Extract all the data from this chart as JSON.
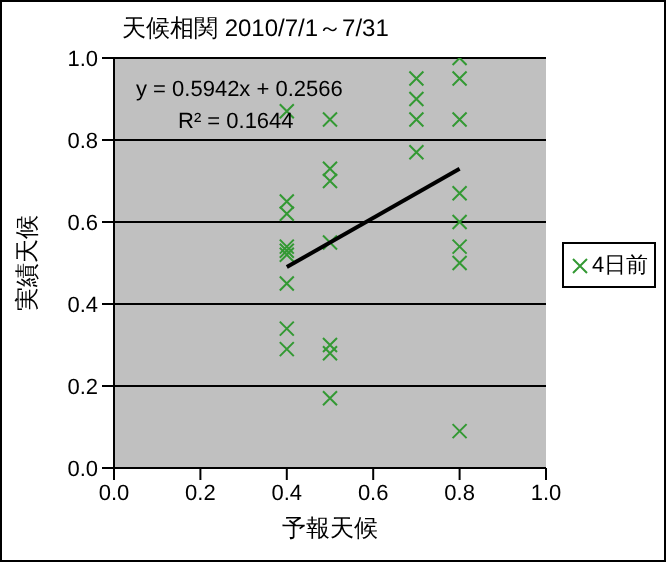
{
  "chart_data": {
    "type": "scatter",
    "title": "天候相関 2010/7/1～7/31",
    "xlabel": "予報天候",
    "ylabel": "実績天候",
    "xlim": [
      0,
      1
    ],
    "xticks": [
      {
        "value": 0,
        "label": "0.0"
      },
      {
        "value": 0.2,
        "label": "0.2"
      },
      {
        "value": 0.4,
        "label": "0.4"
      },
      {
        "value": 0.6,
        "label": "0.6"
      },
      {
        "value": 0.8,
        "label": "0.8"
      },
      {
        "value": 1,
        "label": "1.0"
      }
    ],
    "ylim": [
      0,
      1
    ],
    "yticks": [
      {
        "value": 0,
        "label": "0.0"
      },
      {
        "value": 0.2,
        "label": "0.2"
      },
      {
        "value": 0.4,
        "label": "0.4"
      },
      {
        "value": 0.6,
        "label": "0.6"
      },
      {
        "value": 0.8,
        "label": "0.8"
      },
      {
        "value": 1,
        "label": "1.0"
      }
    ],
    "grid": "y",
    "legend": "right",
    "marker": "cross",
    "series": [
      {
        "name": "4日前",
        "color": "#339933",
        "x": [
          0.4,
          0.4,
          0.4,
          0.4,
          0.4,
          0.4,
          0.4,
          0.4,
          0.4,
          0.5,
          0.5,
          0.5,
          0.5,
          0.5,
          0.5,
          0.5,
          0.7,
          0.7,
          0.7,
          0.7,
          0.8,
          0.8,
          0.8,
          0.8,
          0.8,
          0.8,
          0.8,
          0.8
        ],
        "values": [
          0.87,
          0.65,
          0.62,
          0.54,
          0.53,
          0.52,
          0.45,
          0.34,
          0.29,
          0.85,
          0.73,
          0.7,
          0.55,
          0.3,
          0.28,
          0.17,
          0.95,
          0.9,
          0.85,
          0.77,
          1.0,
          0.95,
          0.85,
          0.67,
          0.6,
          0.54,
          0.5,
          0.09
        ]
      },
      {
        "type": "line",
        "color": "#000000",
        "marker": "none",
        "x": [
          0.4,
          0.8
        ],
        "values": [
          0.49,
          0.73
        ]
      }
    ],
    "annotations": [
      "y = 0.5942x + 0.2566",
      "R² = 0.1644"
    ]
  }
}
